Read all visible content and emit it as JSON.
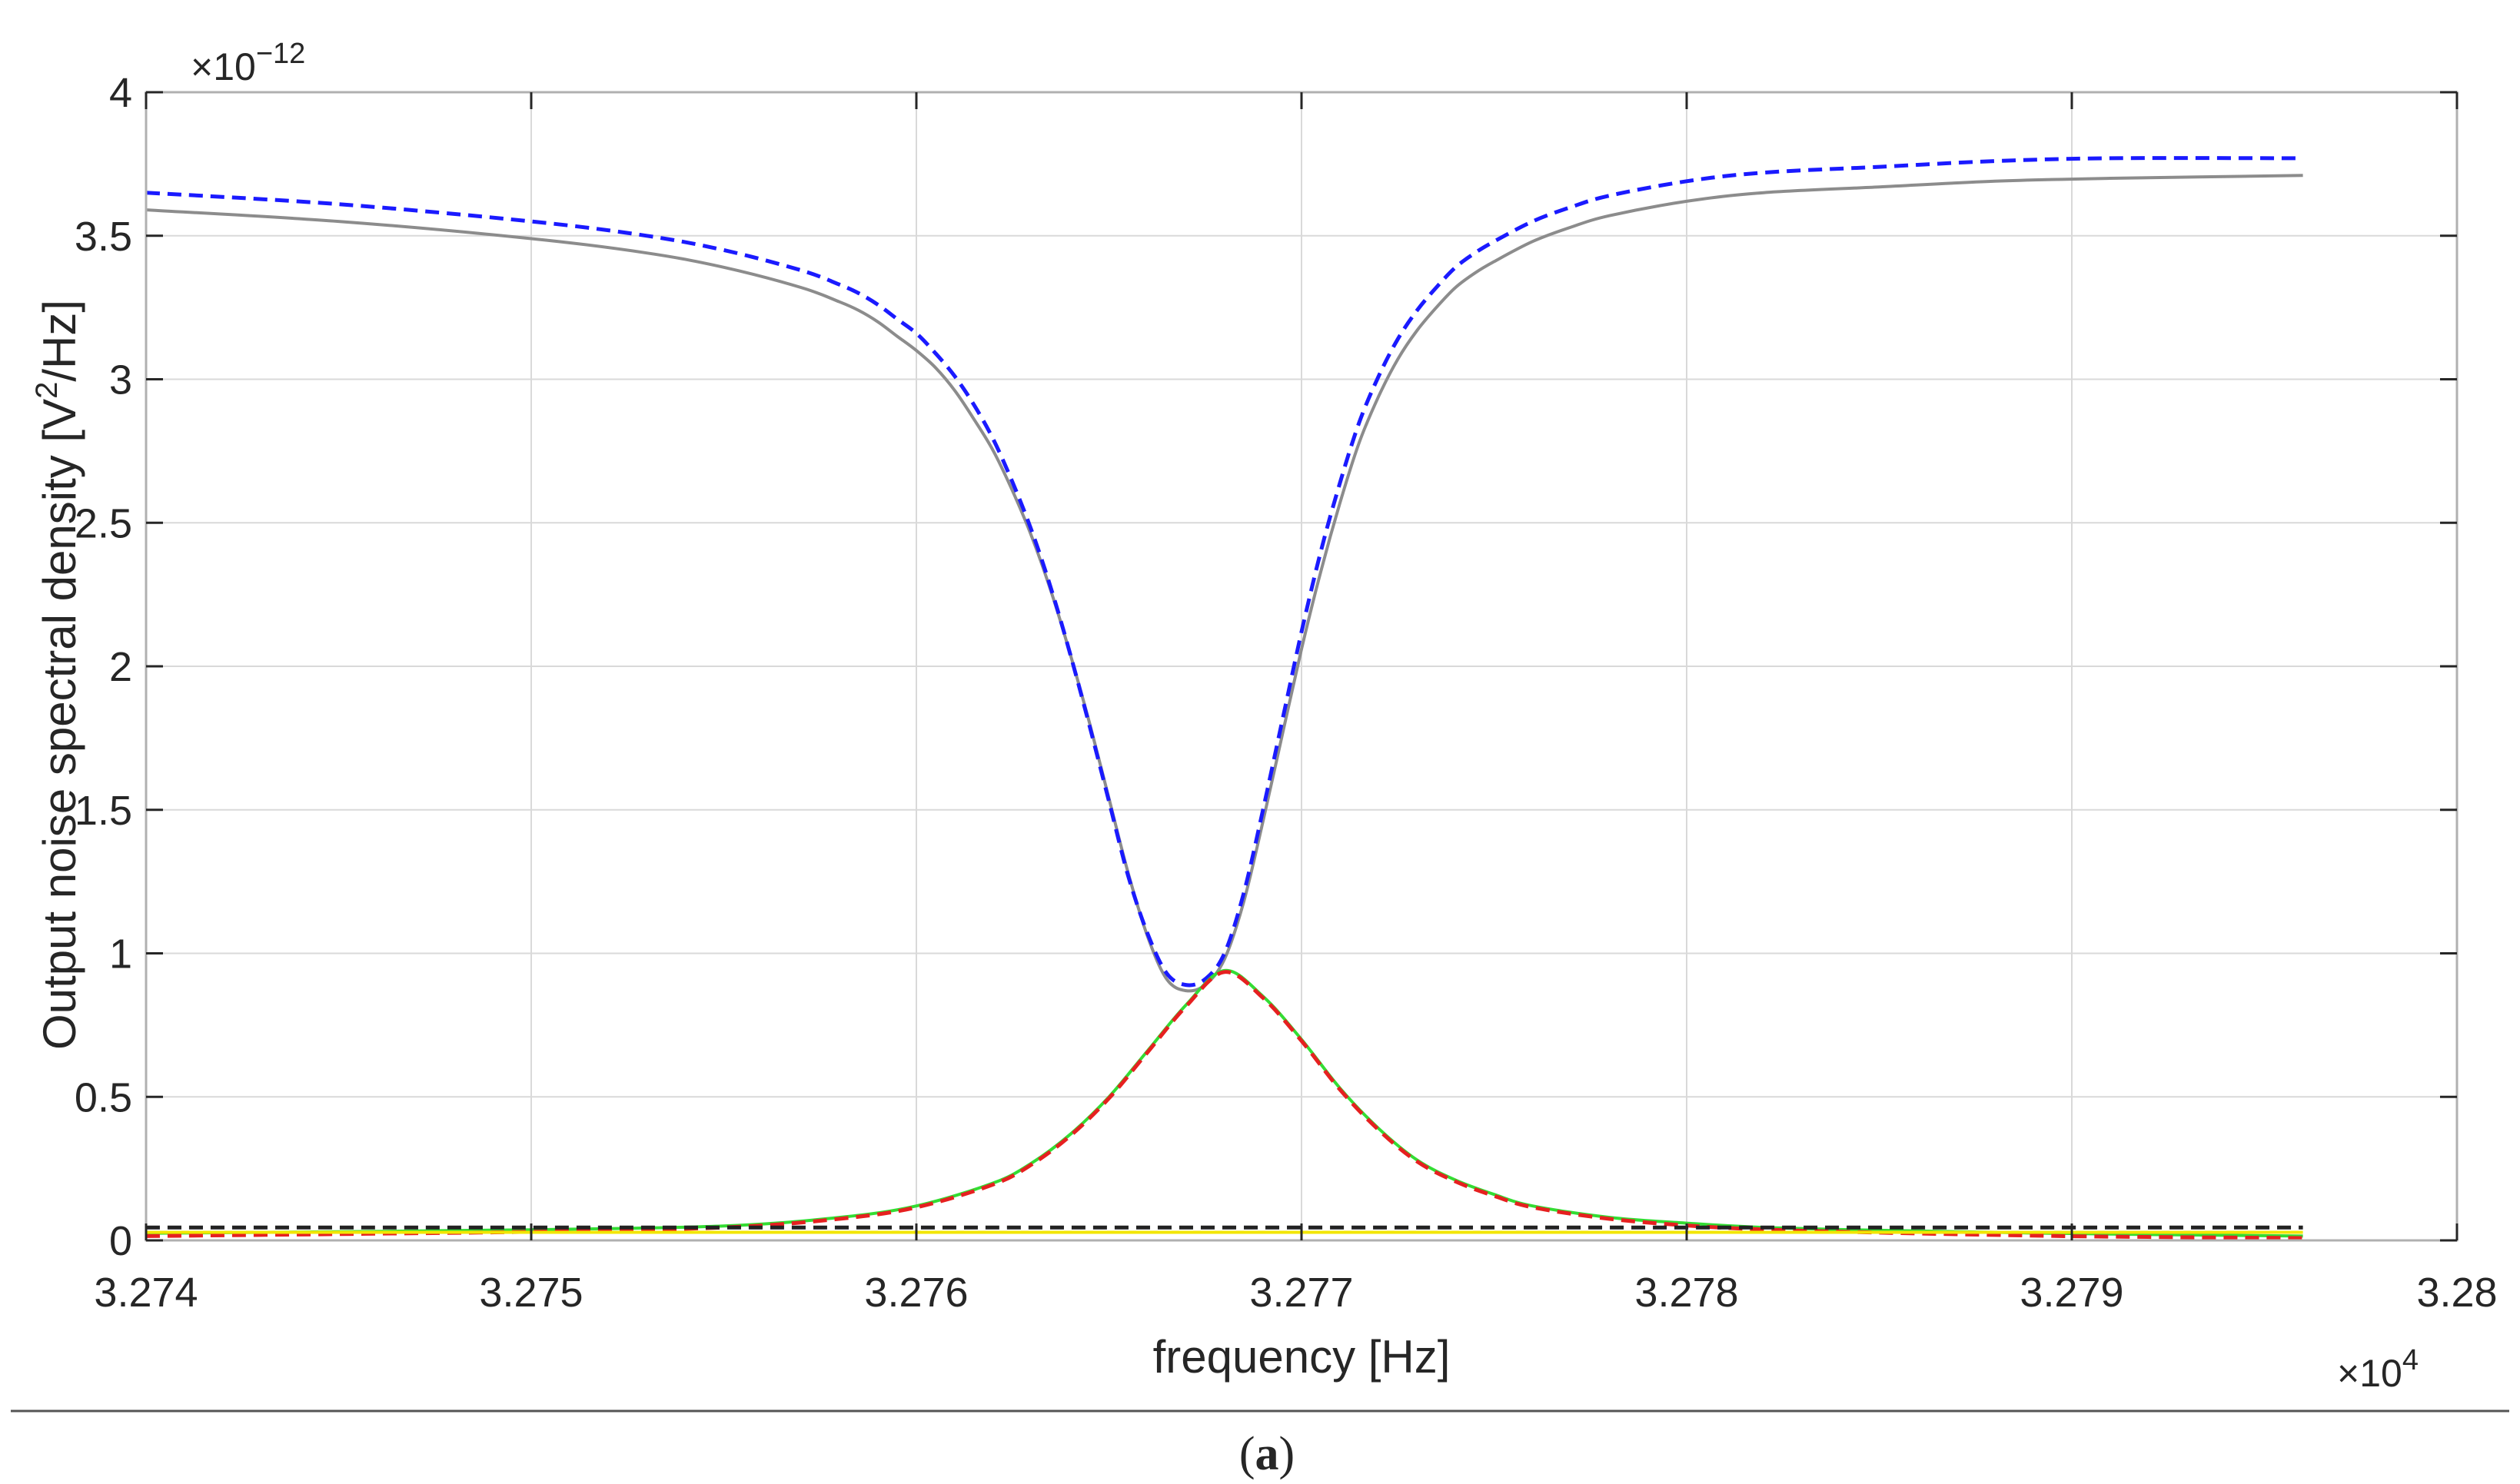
{
  "caption": {
    "open": "(",
    "letter": "a",
    "close": ")"
  },
  "colors": {
    "axis": "#262626",
    "grid": "#d9d9d9",
    "box": "#b0b0b0",
    "rule": "#555555"
  },
  "chart_data": {
    "type": "line",
    "xlabel": "frequency [Hz]",
    "ylabel_parts": {
      "main": "Output noise spectral density [V",
      "sup": "2",
      "tail": "/Hz]"
    },
    "x_multiplier": {
      "base": "×10",
      "exp": "4"
    },
    "y_multiplier": {
      "base": "×10",
      "exp": "−12"
    },
    "xlim": [
      3.274,
      3.28
    ],
    "ylim": [
      0,
      4
    ],
    "x_ticks": [
      3.274,
      3.275,
      3.276,
      3.277,
      3.278,
      3.279,
      3.28
    ],
    "x_tick_labels": [
      "3.274",
      "3.275",
      "3.276",
      "3.277",
      "3.278",
      "3.279",
      "3.28"
    ],
    "y_ticks": [
      0,
      0.5,
      1,
      1.5,
      2,
      2.5,
      3,
      3.5,
      4
    ],
    "y_tick_labels": [
      "0",
      "0.5",
      "1",
      "1.5",
      "2",
      "2.5",
      "3",
      "3.5",
      "4"
    ],
    "grid": true,
    "legend": "none",
    "series": [
      {
        "color": "#8c8c8c",
        "dash": "solid",
        "x": [
          3.274,
          3.2745,
          3.275,
          3.2753,
          3.2755,
          3.2757,
          3.2758,
          3.27585,
          3.2759,
          3.27595,
          3.276,
          3.27605,
          3.2761,
          3.27615,
          3.2762,
          3.27625,
          3.2763,
          3.27635,
          3.2764,
          3.27645,
          3.2765,
          3.27655,
          3.2766,
          3.27665,
          3.2767,
          3.27675,
          3.2768,
          3.27685,
          3.2769,
          3.27695,
          3.277,
          3.27705,
          3.2771,
          3.27715,
          3.2772,
          3.27725,
          3.2773,
          3.27735,
          3.2774,
          3.27745,
          3.2775,
          3.2776,
          3.2777,
          3.2778,
          3.278,
          3.2782,
          3.2785,
          3.2788,
          3.2791,
          3.2796
        ],
        "y": [
          3.59,
          3.55,
          3.49,
          3.44,
          3.39,
          3.32,
          3.27,
          3.24,
          3.2,
          3.15,
          3.1,
          3.04,
          2.96,
          2.86,
          2.75,
          2.61,
          2.45,
          2.26,
          2.04,
          1.8,
          1.54,
          1.28,
          1.06,
          0.91,
          0.87,
          0.89,
          0.98,
          1.18,
          1.46,
          1.76,
          2.06,
          2.33,
          2.57,
          2.78,
          2.94,
          3.07,
          3.17,
          3.25,
          3.32,
          3.37,
          3.41,
          3.48,
          3.53,
          3.57,
          3.62,
          3.65,
          3.67,
          3.69,
          3.7,
          3.71
        ]
      },
      {
        "color": "#1a1aff",
        "dash": "dashed",
        "x": [
          3.274,
          3.2745,
          3.275,
          3.2753,
          3.2755,
          3.2757,
          3.2758,
          3.27585,
          3.2759,
          3.27595,
          3.276,
          3.27605,
          3.2761,
          3.27615,
          3.2762,
          3.27625,
          3.2763,
          3.27635,
          3.2764,
          3.27645,
          3.2765,
          3.27655,
          3.2766,
          3.27665,
          3.2767,
          3.27675,
          3.2768,
          3.27685,
          3.2769,
          3.27695,
          3.277,
          3.27705,
          3.2771,
          3.27715,
          3.2772,
          3.27725,
          3.2773,
          3.27735,
          3.2774,
          3.27745,
          3.2775,
          3.2776,
          3.2777,
          3.2778,
          3.278,
          3.2782,
          3.2785,
          3.2788,
          3.2791,
          3.2796
        ],
        "y": [
          3.65,
          3.61,
          3.55,
          3.5,
          3.45,
          3.38,
          3.33,
          3.3,
          3.26,
          3.21,
          3.16,
          3.09,
          3.01,
          2.91,
          2.79,
          2.64,
          2.47,
          2.27,
          2.04,
          1.79,
          1.53,
          1.27,
          1.07,
          0.93,
          0.89,
          0.91,
          1.0,
          1.21,
          1.5,
          1.81,
          2.12,
          2.4,
          2.64,
          2.85,
          3.01,
          3.14,
          3.24,
          3.32,
          3.39,
          3.44,
          3.48,
          3.55,
          3.6,
          3.64,
          3.69,
          3.72,
          3.74,
          3.76,
          3.77,
          3.77
        ]
      },
      {
        "color": "#33dd33",
        "dash": "solid",
        "x": [
          3.274,
          3.2745,
          3.275,
          3.2755,
          3.2758,
          3.276,
          3.2762,
          3.2763,
          3.2764,
          3.2765,
          3.2766,
          3.2767,
          3.2768,
          3.2769,
          3.277,
          3.2771,
          3.2772,
          3.2773,
          3.2774,
          3.2775,
          3.2776,
          3.2778,
          3.278,
          3.2782,
          3.2785,
          3.2788,
          3.2791,
          3.2796
        ],
        "y": [
          0.025,
          0.03,
          0.037,
          0.05,
          0.08,
          0.12,
          0.2,
          0.27,
          0.37,
          0.5,
          0.66,
          0.82,
          0.94,
          0.85,
          0.7,
          0.53,
          0.39,
          0.28,
          0.21,
          0.16,
          0.12,
          0.08,
          0.06,
          0.045,
          0.035,
          0.028,
          0.022,
          0.015
        ]
      },
      {
        "color": "#e62020",
        "dash": "dashed",
        "x": [
          3.274,
          3.2745,
          3.275,
          3.2755,
          3.2758,
          3.276,
          3.2762,
          3.2763,
          3.2764,
          3.2765,
          3.2766,
          3.2767,
          3.2768,
          3.2769,
          3.277,
          3.2771,
          3.2772,
          3.2773,
          3.2774,
          3.2775,
          3.2776,
          3.2778,
          3.278,
          3.2782,
          3.2785,
          3.2788,
          3.2791,
          3.2796
        ],
        "y": [
          0.015,
          0.022,
          0.03,
          0.045,
          0.075,
          0.115,
          0.195,
          0.265,
          0.365,
          0.495,
          0.655,
          0.815,
          0.935,
          0.845,
          0.695,
          0.525,
          0.385,
          0.275,
          0.205,
          0.155,
          0.115,
          0.075,
          0.052,
          0.038,
          0.027,
          0.019,
          0.013,
          0.008
        ]
      },
      {
        "color": "#f2e600",
        "dash": "solid",
        "x": [
          3.274,
          3.2796
        ],
        "y": [
          0.028,
          0.028
        ]
      },
      {
        "color": "#222222",
        "dash": "dashed",
        "x": [
          3.274,
          3.2796
        ],
        "y": [
          0.045,
          0.045
        ]
      }
    ]
  }
}
